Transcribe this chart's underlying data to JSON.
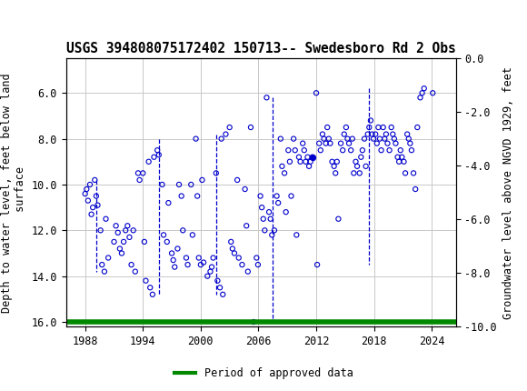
{
  "title": "USGS 394808075172402 150713-- Swedesboro Rd 2 Obs",
  "ylabel_left": "Depth to water level, feet below land\n surface",
  "ylabel_right": "Groundwater level above NGVD 1929, feet",
  "ylim_left": [
    16.2,
    4.5
  ],
  "ylim_right": [
    -10.0,
    0.0
  ],
  "yticks_left": [
    6.0,
    8.0,
    10.0,
    12.0,
    14.0,
    16.0
  ],
  "yticks_right": [
    0.0,
    -2.0,
    -4.0,
    -6.0,
    -8.0,
    -10.0
  ],
  "xticks": [
    1988,
    1994,
    2000,
    2006,
    2012,
    2018,
    2024
  ],
  "xlim": [
    1986.0,
    2026.5
  ],
  "header_color": "#1a6b3c",
  "bg_color": "#ffffff",
  "plot_bg_color": "#ffffff",
  "grid_color": "#c8c8c8",
  "data_color": "#0000cc",
  "approved_color": "#008800",
  "legend_label": "Period of approved data",
  "data_points": [
    [
      1988.0,
      10.4
    ],
    [
      1988.15,
      10.2
    ],
    [
      1988.3,
      10.7
    ],
    [
      1988.5,
      10.0
    ],
    [
      1988.65,
      11.3
    ],
    [
      1988.8,
      11.0
    ],
    [
      1989.0,
      9.8
    ],
    [
      1989.15,
      10.5
    ],
    [
      1989.3,
      10.9
    ],
    [
      1989.6,
      12.0
    ],
    [
      1989.75,
      13.5
    ],
    [
      1990.0,
      13.8
    ],
    [
      1990.15,
      11.5
    ],
    [
      1990.4,
      13.2
    ],
    [
      1991.0,
      12.5
    ],
    [
      1991.2,
      11.8
    ],
    [
      1991.4,
      12.1
    ],
    [
      1991.6,
      12.8
    ],
    [
      1991.8,
      13.0
    ],
    [
      1992.0,
      12.5
    ],
    [
      1992.2,
      12.0
    ],
    [
      1992.4,
      11.8
    ],
    [
      1992.6,
      12.3
    ],
    [
      1992.8,
      13.5
    ],
    [
      1993.0,
      12.0
    ],
    [
      1993.2,
      13.8
    ],
    [
      1993.5,
      9.5
    ],
    [
      1993.65,
      9.8
    ],
    [
      1994.0,
      9.5
    ],
    [
      1994.15,
      12.5
    ],
    [
      1994.3,
      14.2
    ],
    [
      1994.6,
      9.0
    ],
    [
      1994.75,
      14.5
    ],
    [
      1995.0,
      14.8
    ],
    [
      1995.15,
      8.8
    ],
    [
      1995.5,
      8.5
    ],
    [
      1995.65,
      8.7
    ],
    [
      1996.0,
      10.0
    ],
    [
      1996.15,
      12.2
    ],
    [
      1996.5,
      12.5
    ],
    [
      1996.65,
      10.8
    ],
    [
      1997.0,
      13.0
    ],
    [
      1997.15,
      13.3
    ],
    [
      1997.3,
      13.6
    ],
    [
      1997.6,
      12.8
    ],
    [
      1997.75,
      10.0
    ],
    [
      1998.0,
      10.5
    ],
    [
      1998.15,
      12.0
    ],
    [
      1998.5,
      13.2
    ],
    [
      1998.65,
      13.5
    ],
    [
      1999.0,
      10.0
    ],
    [
      1999.15,
      12.2
    ],
    [
      1999.5,
      8.0
    ],
    [
      1999.65,
      10.5
    ],
    [
      1999.8,
      13.2
    ],
    [
      2000.0,
      13.5
    ],
    [
      2000.15,
      9.8
    ],
    [
      2000.3,
      13.4
    ],
    [
      2000.7,
      14.0
    ],
    [
      2001.0,
      13.8
    ],
    [
      2001.15,
      13.6
    ],
    [
      2001.3,
      13.2
    ],
    [
      2001.6,
      9.5
    ],
    [
      2001.75,
      14.2
    ],
    [
      2002.0,
      14.5
    ],
    [
      2002.15,
      8.0
    ],
    [
      2002.3,
      14.8
    ],
    [
      2002.6,
      7.8
    ],
    [
      2003.0,
      7.5
    ],
    [
      2003.15,
      12.5
    ],
    [
      2003.3,
      12.8
    ],
    [
      2003.5,
      13.0
    ],
    [
      2003.8,
      9.8
    ],
    [
      2003.95,
      13.2
    ],
    [
      2004.3,
      13.5
    ],
    [
      2004.6,
      10.2
    ],
    [
      2004.75,
      11.8
    ],
    [
      2004.9,
      13.8
    ],
    [
      2005.2,
      7.5
    ],
    [
      2005.5,
      16.0
    ],
    [
      2005.8,
      13.2
    ],
    [
      2005.95,
      13.5
    ],
    [
      2006.2,
      10.5
    ],
    [
      2006.35,
      11.0
    ],
    [
      2006.5,
      11.5
    ],
    [
      2006.65,
      12.0
    ],
    [
      2006.85,
      6.2
    ],
    [
      2007.1,
      11.2
    ],
    [
      2007.25,
      11.5
    ],
    [
      2007.4,
      12.2
    ],
    [
      2007.65,
      12.0
    ],
    [
      2007.9,
      10.5
    ],
    [
      2008.05,
      10.8
    ],
    [
      2008.3,
      8.0
    ],
    [
      2008.45,
      9.2
    ],
    [
      2008.7,
      9.5
    ],
    [
      2008.85,
      11.2
    ],
    [
      2009.1,
      8.5
    ],
    [
      2009.25,
      9.0
    ],
    [
      2009.4,
      10.5
    ],
    [
      2009.65,
      8.0
    ],
    [
      2009.8,
      8.5
    ],
    [
      2009.95,
      12.2
    ],
    [
      2010.2,
      8.8
    ],
    [
      2010.35,
      9.0
    ],
    [
      2010.6,
      8.2
    ],
    [
      2010.75,
      8.5
    ],
    [
      2010.9,
      9.0
    ],
    [
      2011.1,
      8.8
    ],
    [
      2011.25,
      9.2
    ],
    [
      2011.4,
      9.0
    ],
    [
      2011.6,
      8.8
    ],
    [
      2012.0,
      6.0
    ],
    [
      2012.1,
      13.5
    ],
    [
      2012.3,
      8.2
    ],
    [
      2012.45,
      8.5
    ],
    [
      2012.65,
      7.8
    ],
    [
      2012.8,
      8.0
    ],
    [
      2013.0,
      8.2
    ],
    [
      2013.15,
      7.5
    ],
    [
      2013.3,
      8.0
    ],
    [
      2013.45,
      8.2
    ],
    [
      2013.65,
      9.0
    ],
    [
      2013.85,
      9.2
    ],
    [
      2014.0,
      9.5
    ],
    [
      2014.15,
      9.0
    ],
    [
      2014.3,
      11.5
    ],
    [
      2014.55,
      8.2
    ],
    [
      2014.75,
      8.5
    ],
    [
      2014.9,
      7.8
    ],
    [
      2015.1,
      7.5
    ],
    [
      2015.25,
      8.0
    ],
    [
      2015.4,
      8.2
    ],
    [
      2015.6,
      8.5
    ],
    [
      2015.75,
      8.0
    ],
    [
      2015.9,
      9.5
    ],
    [
      2016.1,
      9.0
    ],
    [
      2016.25,
      9.2
    ],
    [
      2016.5,
      9.5
    ],
    [
      2016.65,
      8.8
    ],
    [
      2016.8,
      8.5
    ],
    [
      2017.0,
      8.0
    ],
    [
      2017.15,
      9.2
    ],
    [
      2017.35,
      7.8
    ],
    [
      2017.5,
      7.5
    ],
    [
      2017.65,
      7.2
    ],
    [
      2017.8,
      7.8
    ],
    [
      2017.95,
      8.0
    ],
    [
      2018.15,
      7.8
    ],
    [
      2018.3,
      8.2
    ],
    [
      2018.45,
      7.5
    ],
    [
      2018.6,
      8.0
    ],
    [
      2018.75,
      8.5
    ],
    [
      2018.95,
      7.5
    ],
    [
      2019.1,
      8.0
    ],
    [
      2019.25,
      7.8
    ],
    [
      2019.4,
      8.2
    ],
    [
      2019.6,
      8.5
    ],
    [
      2019.8,
      7.5
    ],
    [
      2019.95,
      7.8
    ],
    [
      2020.1,
      8.0
    ],
    [
      2020.25,
      8.2
    ],
    [
      2020.45,
      8.8
    ],
    [
      2020.6,
      9.0
    ],
    [
      2020.75,
      8.5
    ],
    [
      2020.9,
      8.8
    ],
    [
      2021.1,
      9.0
    ],
    [
      2021.25,
      9.5
    ],
    [
      2021.45,
      7.8
    ],
    [
      2021.6,
      8.0
    ],
    [
      2021.75,
      8.2
    ],
    [
      2021.9,
      8.5
    ],
    [
      2022.1,
      9.5
    ],
    [
      2022.3,
      10.2
    ],
    [
      2022.5,
      7.5
    ],
    [
      2022.8,
      6.2
    ],
    [
      2023.0,
      6.0
    ],
    [
      2023.2,
      5.8
    ],
    [
      2024.1,
      6.0
    ]
  ],
  "filled_point": [
    2011.6,
    8.8
  ],
  "title_fontsize": 10.5,
  "axis_fontsize": 8.5,
  "tick_fontsize": 8.5
}
